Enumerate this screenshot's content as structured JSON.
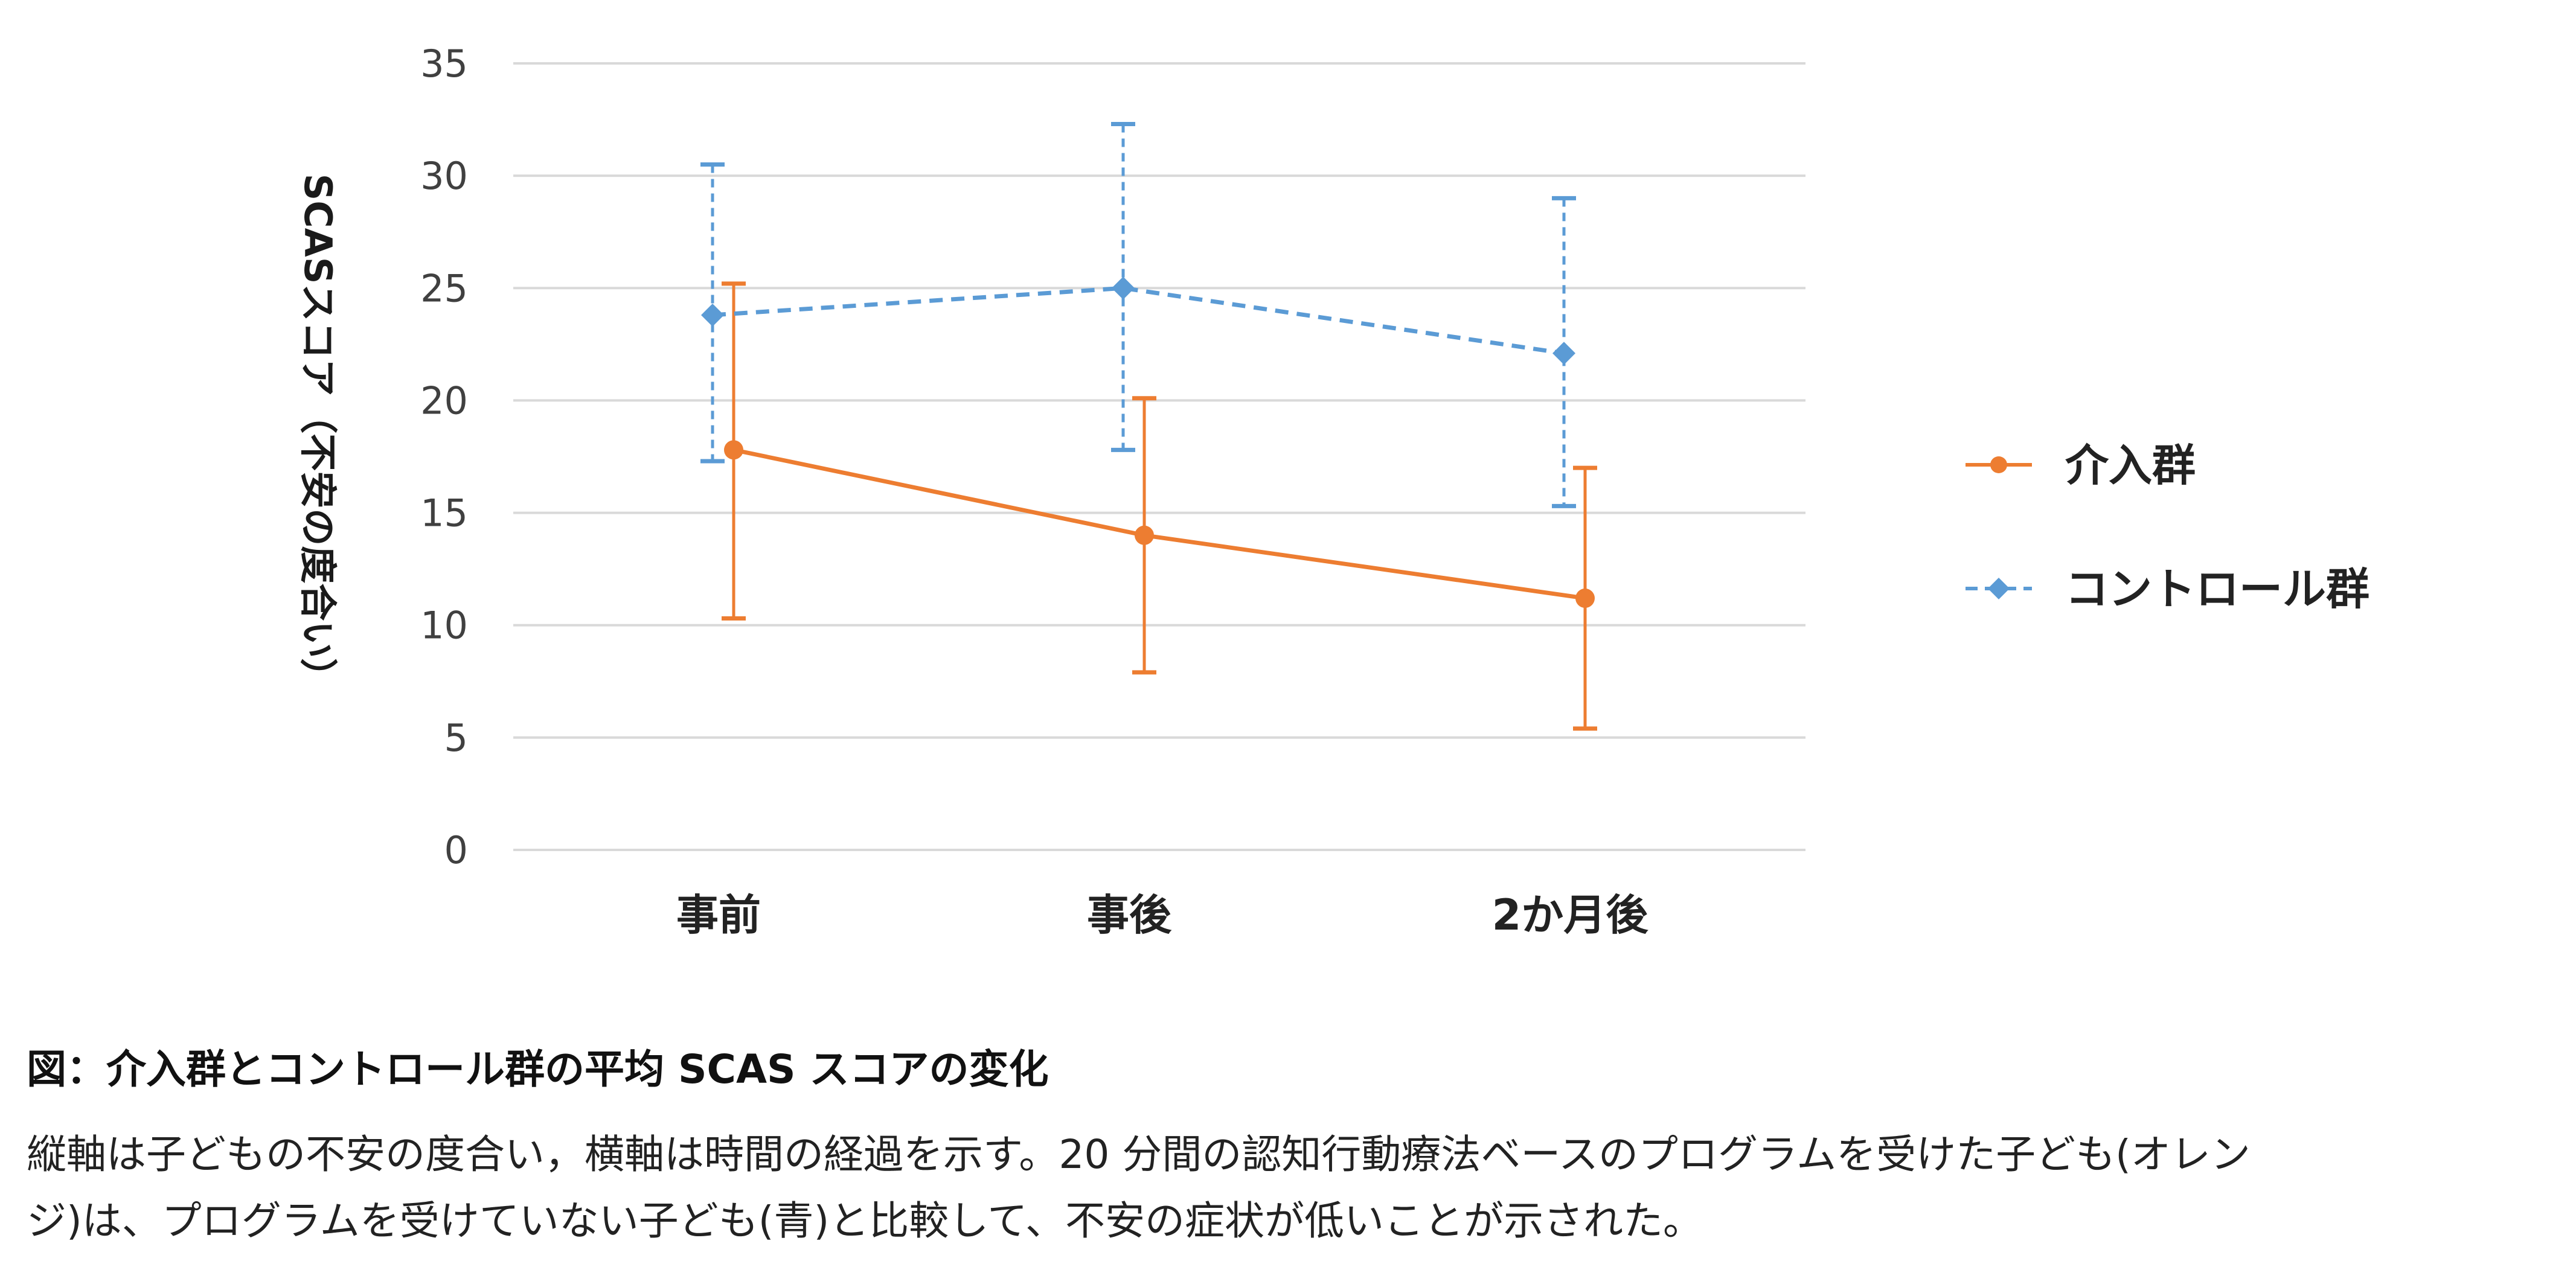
{
  "chart_data": {
    "type": "line",
    "categories": [
      "事前",
      "事後",
      "2か月後"
    ],
    "ylabel": "SCASスコア（不安の度合い）",
    "ylim": [
      0,
      35
    ],
    "yticks": [
      0,
      5,
      10,
      15,
      20,
      25,
      30,
      35
    ],
    "grid": true,
    "legend_position": "right",
    "series": [
      {
        "name": "介入群",
        "color": "#ED7D31",
        "line_style": "solid",
        "marker": "circle",
        "values": [
          17.8,
          14.0,
          11.2
        ],
        "error_low": [
          10.3,
          7.9,
          5.4
        ],
        "error_high": [
          25.2,
          20.1,
          17.0
        ]
      },
      {
        "name": "コントロール群",
        "color": "#5B9BD5",
        "line_style": "dashed",
        "marker": "diamond",
        "values": [
          23.8,
          25.0,
          22.1
        ],
        "error_low": [
          17.3,
          17.8,
          15.3
        ],
        "error_high": [
          30.5,
          32.3,
          29.0
        ]
      }
    ]
  },
  "caption": {
    "title": "図：介入群とコントロール群の平均 SCAS スコアの変化",
    "body_line1": "縦軸は子どもの不安の度合い，横軸は時間の経過を示す。20 分間の認知行動療法ベースのプログラムを受けた子ども(オレン",
    "body_line2": "ジ)は、プログラムを受けていない子ども(青)と比較して、不安の症状が低いことが示された。"
  }
}
